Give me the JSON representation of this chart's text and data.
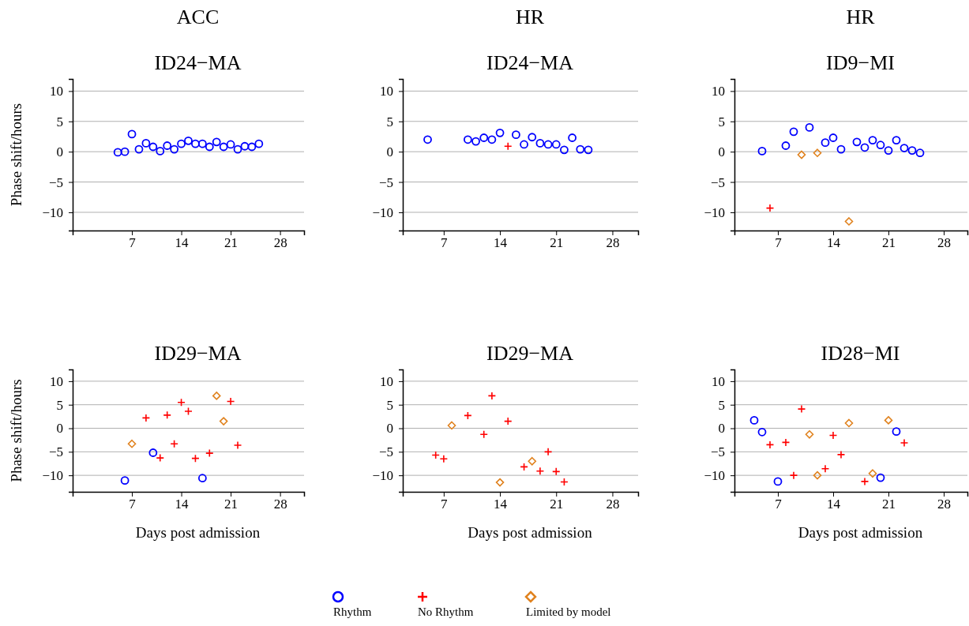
{
  "chart_data": [
    {
      "type": "scatter",
      "title": "ACC",
      "subtitle": "ID24−MA",
      "ylabel": "Phase shift/hours",
      "xlim": [
        -1.4,
        31.4
      ],
      "ylim": [
        -13,
        12
      ],
      "xticks": [
        7,
        14,
        21,
        28
      ],
      "yticks": [
        -10,
        -5,
        0,
        5,
        10
      ],
      "grid": "y",
      "series": [
        {
          "color": "#0000ff",
          "marker": "circle",
          "x": [
            5,
            6,
            7,
            8,
            9,
            10,
            11,
            12,
            13,
            14,
            15,
            16,
            17,
            18,
            19,
            20,
            21,
            22,
            23,
            24,
            25
          ],
          "values": [
            -0.1,
            0,
            2.9,
            0.4,
            1.4,
            0.8,
            0.1,
            1.0,
            0.4,
            1.3,
            1.8,
            1.3,
            1.3,
            0.8,
            1.6,
            0.8,
            1.2,
            0.4,
            0.9,
            0.8,
            1.3
          ]
        }
      ]
    },
    {
      "type": "scatter",
      "title": "HR",
      "subtitle": "ID24−MA",
      "xlim": [
        1.9,
        31.2
      ],
      "ylim": [
        -13,
        12
      ],
      "xticks": [
        7,
        14,
        21,
        28
      ],
      "yticks": [
        -10,
        -5,
        0,
        5,
        10
      ],
      "grid": "y",
      "series": [
        {
          "color": "#0000ff",
          "marker": "circle",
          "x": [
            5,
            10,
            11,
            12,
            13,
            14,
            16,
            17,
            18,
            19,
            20,
            21,
            22,
            23,
            24,
            25
          ],
          "values": [
            2.0,
            2.0,
            1.7,
            2.3,
            2.0,
            3.1,
            2.8,
            1.2,
            2.4,
            1.4,
            1.2,
            1.2,
            0.3,
            2.3,
            0.4,
            0.3
          ]
        },
        {
          "color": "#ff0000",
          "marker": "cross",
          "x": [
            15
          ],
          "values": [
            0.9
          ]
        }
      ]
    },
    {
      "type": "scatter",
      "title": "HR",
      "subtitle": "ID9−MI",
      "xlim": [
        1.5,
        31
      ],
      "ylim": [
        -13,
        12
      ],
      "xticks": [
        7,
        14,
        21,
        28
      ],
      "yticks": [
        -10,
        -5,
        0,
        5,
        10
      ],
      "grid": "y",
      "series": [
        {
          "color": "#0000ff",
          "marker": "circle",
          "x": [
            5,
            8,
            9,
            11,
            13,
            14,
            15,
            17,
            18,
            19,
            20,
            21,
            22,
            23,
            24,
            25
          ],
          "values": [
            0.1,
            1.0,
            3.3,
            4.0,
            1.5,
            2.3,
            0.4,
            1.6,
            0.7,
            1.9,
            1.1,
            0.2,
            1.9,
            0.6,
            0.2,
            -0.2
          ]
        },
        {
          "color": "#ff0000",
          "marker": "cross",
          "x": [
            6
          ],
          "values": [
            -9.3
          ]
        },
        {
          "color": "#e0821e",
          "marker": "diamond",
          "x": [
            10,
            12,
            16
          ],
          "values": [
            -0.5,
            -0.2,
            -11.5
          ]
        }
      ]
    },
    {
      "type": "scatter",
      "title": "ID29−MA",
      "xlabel": "Days post admission",
      "ylabel": "Phase shift/hours",
      "xlim": [
        -1.4,
        31.4
      ],
      "ylim": [
        -13.5,
        12.5
      ],
      "xticks": [
        7,
        14,
        21,
        28
      ],
      "yticks": [
        -10,
        -5,
        0,
        5,
        10
      ],
      "grid": "y",
      "series": [
        {
          "color": "#0000ff",
          "marker": "circle",
          "x": [
            6,
            10,
            17
          ],
          "values": [
            -11.1,
            -5.2,
            -10.6
          ]
        },
        {
          "color": "#ff0000",
          "marker": "cross",
          "x": [
            9,
            11,
            12,
            13,
            14,
            15,
            16,
            18,
            21,
            22
          ],
          "values": [
            2.2,
            -6.3,
            2.8,
            -3.3,
            5.5,
            3.6,
            -6.4,
            -5.3,
            5.7,
            -3.6
          ]
        },
        {
          "color": "#e0821e",
          "marker": "diamond",
          "x": [
            7,
            19,
            20
          ],
          "values": [
            -3.3,
            6.9,
            1.5
          ]
        }
      ]
    },
    {
      "type": "scatter",
      "title": "ID29−MA",
      "xlabel": "Days post admission",
      "xlim": [
        1.9,
        31.2
      ],
      "ylim": [
        -13.5,
        12.5
      ],
      "xticks": [
        7,
        14,
        21,
        28
      ],
      "yticks": [
        -10,
        -5,
        0,
        5,
        10
      ],
      "grid": "y",
      "series": [
        {
          "color": "#ff0000",
          "marker": "cross",
          "x": [
            6,
            7,
            10,
            12,
            13,
            15,
            17,
            19,
            20,
            21,
            22
          ],
          "values": [
            -5.7,
            -6.5,
            2.7,
            -1.3,
            6.9,
            1.5,
            -8.2,
            -9.1,
            -5.0,
            -9.2,
            -11.4
          ]
        },
        {
          "color": "#e0821e",
          "marker": "diamond",
          "x": [
            8,
            14,
            18
          ],
          "values": [
            0.6,
            -11.5,
            -7.0
          ]
        }
      ]
    },
    {
      "type": "scatter",
      "title": "ID28−MI",
      "xlabel": "Days post admission",
      "xlim": [
        1.5,
        31
      ],
      "ylim": [
        -13.5,
        12.5
      ],
      "xticks": [
        7,
        14,
        21,
        28
      ],
      "yticks": [
        -10,
        -5,
        0,
        5,
        10
      ],
      "grid": "y",
      "legend": "bottom",
      "series": [
        {
          "name": "Rhythm",
          "color": "#0000ff",
          "marker": "circle",
          "x": [
            4,
            5,
            7,
            20,
            22
          ],
          "values": [
            1.7,
            -0.8,
            -11.3,
            -10.5,
            -0.7
          ]
        },
        {
          "name": "No Rhythm",
          "color": "#ff0000",
          "marker": "cross",
          "x": [
            6,
            8,
            9,
            10,
            13,
            14,
            15,
            18,
            23
          ],
          "values": [
            -3.5,
            -3.0,
            -10.0,
            4.1,
            -8.6,
            -1.5,
            -5.6,
            -11.3,
            -3.1
          ]
        },
        {
          "name": "Limited by model",
          "color": "#e0821e",
          "marker": "diamond",
          "x": [
            11,
            12,
            16,
            19,
            21
          ],
          "values": [
            -1.3,
            -10.0,
            1.1,
            -9.6,
            1.7
          ]
        }
      ]
    }
  ]
}
